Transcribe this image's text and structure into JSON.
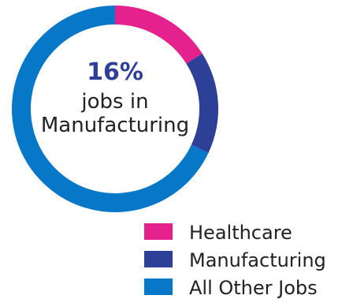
{
  "chart_data": {
    "type": "pie",
    "variant": "donut",
    "categories": [
      "Healthcare",
      "Manufacturing",
      "All Other Jobs"
    ],
    "values": [
      16,
      16,
      68
    ],
    "colors": [
      "#e5218d",
      "#2e3f98",
      "#0778c8"
    ],
    "legend_position": "bottom-right",
    "center_label": {
      "value": "16%",
      "line1": "jobs in",
      "line2": "Manufacturing"
    }
  }
}
